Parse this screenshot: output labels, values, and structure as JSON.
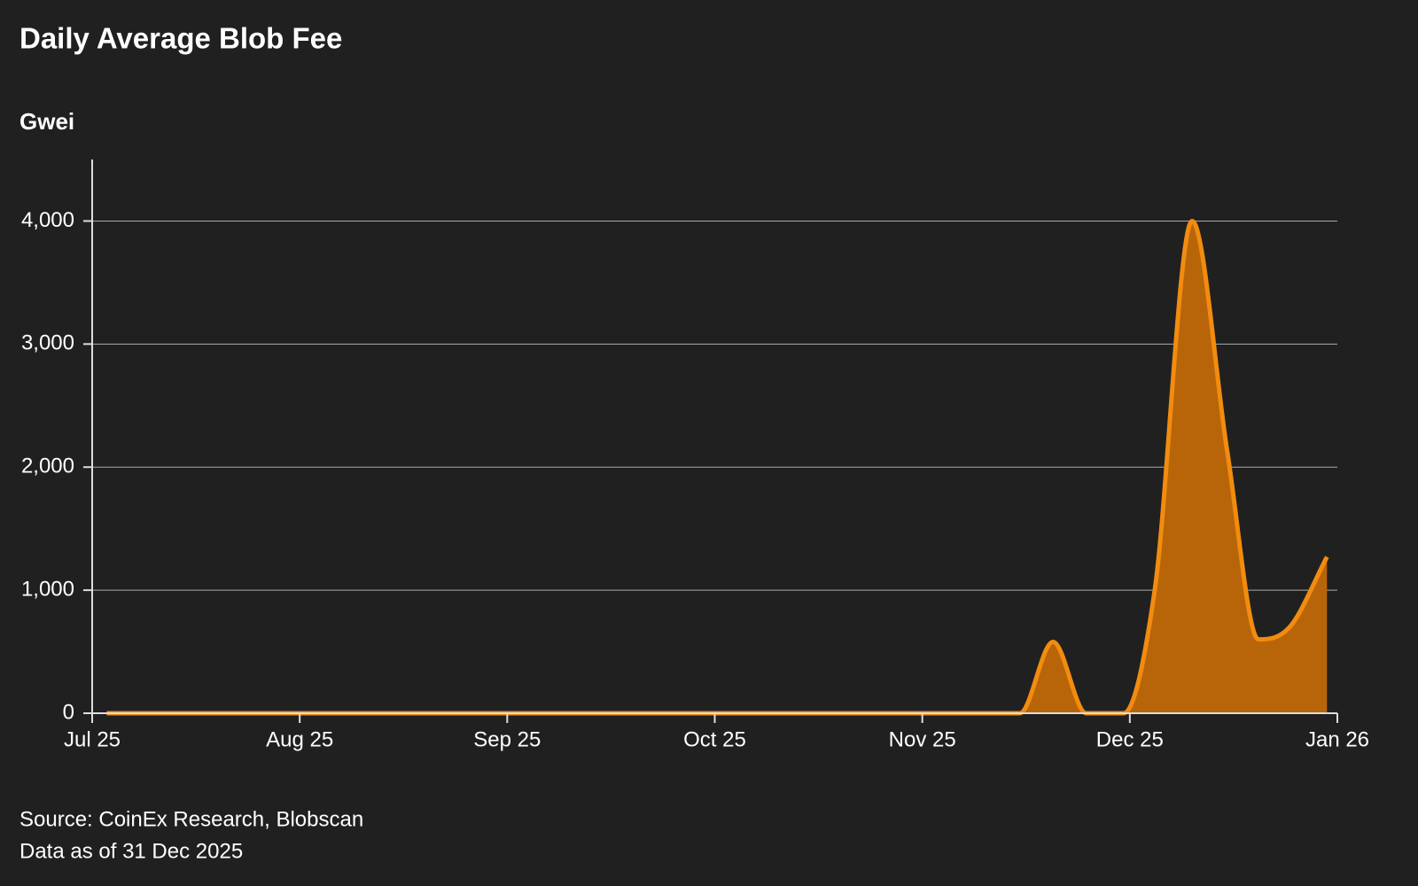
{
  "chart_data": {
    "type": "area",
    "title": "Daily Average Blob Fee",
    "subtitle": "Gwei",
    "source": "Source: CoinEx Research, Blobscan",
    "note": "Data as of 31 Dec 2025",
    "x": [
      0.07,
      4.47,
      4.63,
      4.79,
      4.97,
      5.12,
      5.3,
      5.47,
      5.62,
      5.77,
      5.95
    ],
    "series": [
      {
        "name": "Daily Average Blob Fee",
        "color": "#f28c0f",
        "fill": "#b8650a",
        "values": [
          0,
          0,
          580,
          0,
          0,
          1000,
          4000,
          2120,
          600,
          700,
          1270
        ]
      }
    ],
    "xlim": [
      0,
      6
    ],
    "xticks": [
      {
        "value": 0,
        "label": "Jul 25"
      },
      {
        "value": 1,
        "label": "Aug 25"
      },
      {
        "value": 2,
        "label": "Sep 25"
      },
      {
        "value": 3,
        "label": "Oct 25"
      },
      {
        "value": 4,
        "label": "Nov 25"
      },
      {
        "value": 5,
        "label": "Dec 25"
      },
      {
        "value": 6,
        "label": "Jan 26"
      }
    ],
    "ylim": [
      0,
      4500
    ],
    "yticks": [
      0,
      {
        "value": 1000,
        "label": "1,000"
      },
      {
        "value": 2000,
        "label": "2,000"
      },
      {
        "value": 3000,
        "label": "3,000"
      },
      {
        "value": 4000,
        "label": "4,000"
      }
    ],
    "grid": true
  }
}
